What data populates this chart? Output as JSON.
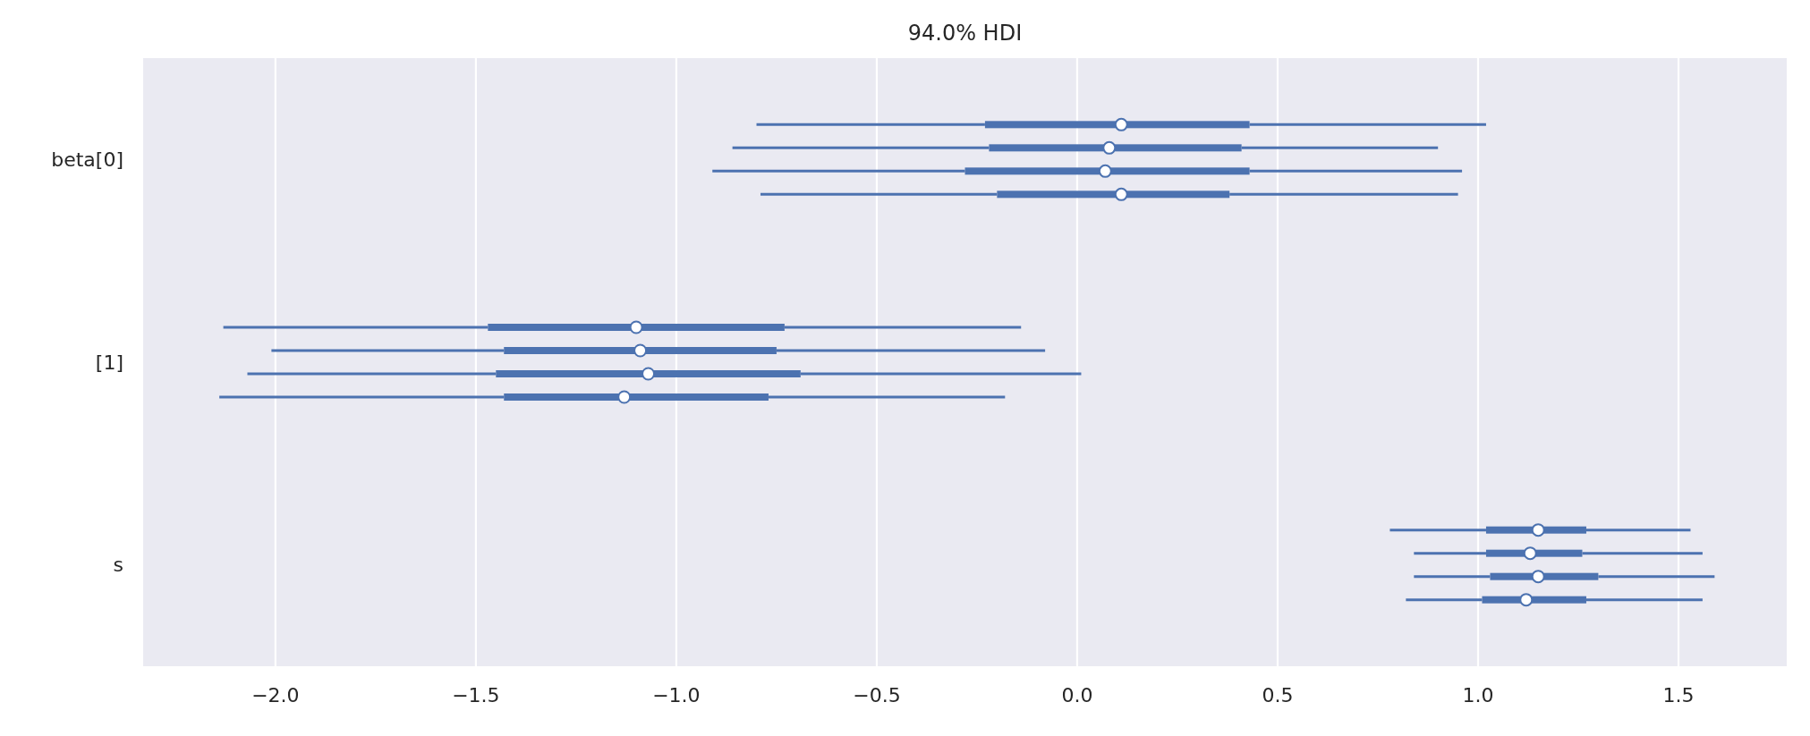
{
  "chart_data": {
    "type": "box",
    "title": "94.0% HDI",
    "orientation": "horizontal",
    "categories": [
      "beta[0]",
      "[1]",
      "s"
    ],
    "series": [
      {
        "color": "#4c72b0",
        "boxes": [
          {
            "low": -0.8,
            "q1": -0.23,
            "median": 0.11,
            "q3": 0.43,
            "high": 1.02
          },
          {
            "low": -2.13,
            "q1": -1.47,
            "median": -1.1,
            "q3": -0.73,
            "high": -0.14
          },
          {
            "low": 0.78,
            "q1": 1.02,
            "median": 1.15,
            "q3": 1.27,
            "high": 1.53
          }
        ]
      },
      {
        "color": "#4c72b0",
        "boxes": [
          {
            "low": -0.86,
            "q1": -0.22,
            "median": 0.08,
            "q3": 0.41,
            "high": 0.9
          },
          {
            "low": -2.01,
            "q1": -1.43,
            "median": -1.09,
            "q3": -0.75,
            "high": -0.08
          },
          {
            "low": 0.84,
            "q1": 1.02,
            "median": 1.13,
            "q3": 1.26,
            "high": 1.56
          }
        ]
      },
      {
        "color": "#4c72b0",
        "boxes": [
          {
            "low": -0.91,
            "q1": -0.28,
            "median": 0.07,
            "q3": 0.43,
            "high": 0.96
          },
          {
            "low": -2.07,
            "q1": -1.45,
            "median": -1.07,
            "q3": -0.69,
            "high": 0.01
          },
          {
            "low": 0.84,
            "q1": 1.03,
            "median": 1.15,
            "q3": 1.3,
            "high": 1.59
          }
        ]
      },
      {
        "color": "#4c72b0",
        "boxes": [
          {
            "low": -0.79,
            "q1": -0.2,
            "median": 0.11,
            "q3": 0.38,
            "high": 0.95
          },
          {
            "low": -2.14,
            "q1": -1.43,
            "median": -1.13,
            "q3": -0.77,
            "high": -0.18
          },
          {
            "low": 0.82,
            "q1": 1.01,
            "median": 1.12,
            "q3": 1.27,
            "high": 1.56
          }
        ]
      }
    ],
    "xlim": [
      -2.33,
      1.77
    ],
    "xticks": [
      {
        "value": -2,
        "label": "−2.0"
      },
      {
        "value": -1.5,
        "label": "−1.5"
      },
      {
        "value": -1,
        "label": "−1.0"
      },
      {
        "value": -0.5,
        "label": "−0.5"
      },
      {
        "value": 0,
        "label": "0.0"
      },
      {
        "value": 0.5,
        "label": "0.5"
      },
      {
        "value": 1,
        "label": "1.0"
      },
      {
        "value": 1.5,
        "label": "1.5"
      }
    ],
    "grid": "x",
    "marker": "circle"
  }
}
